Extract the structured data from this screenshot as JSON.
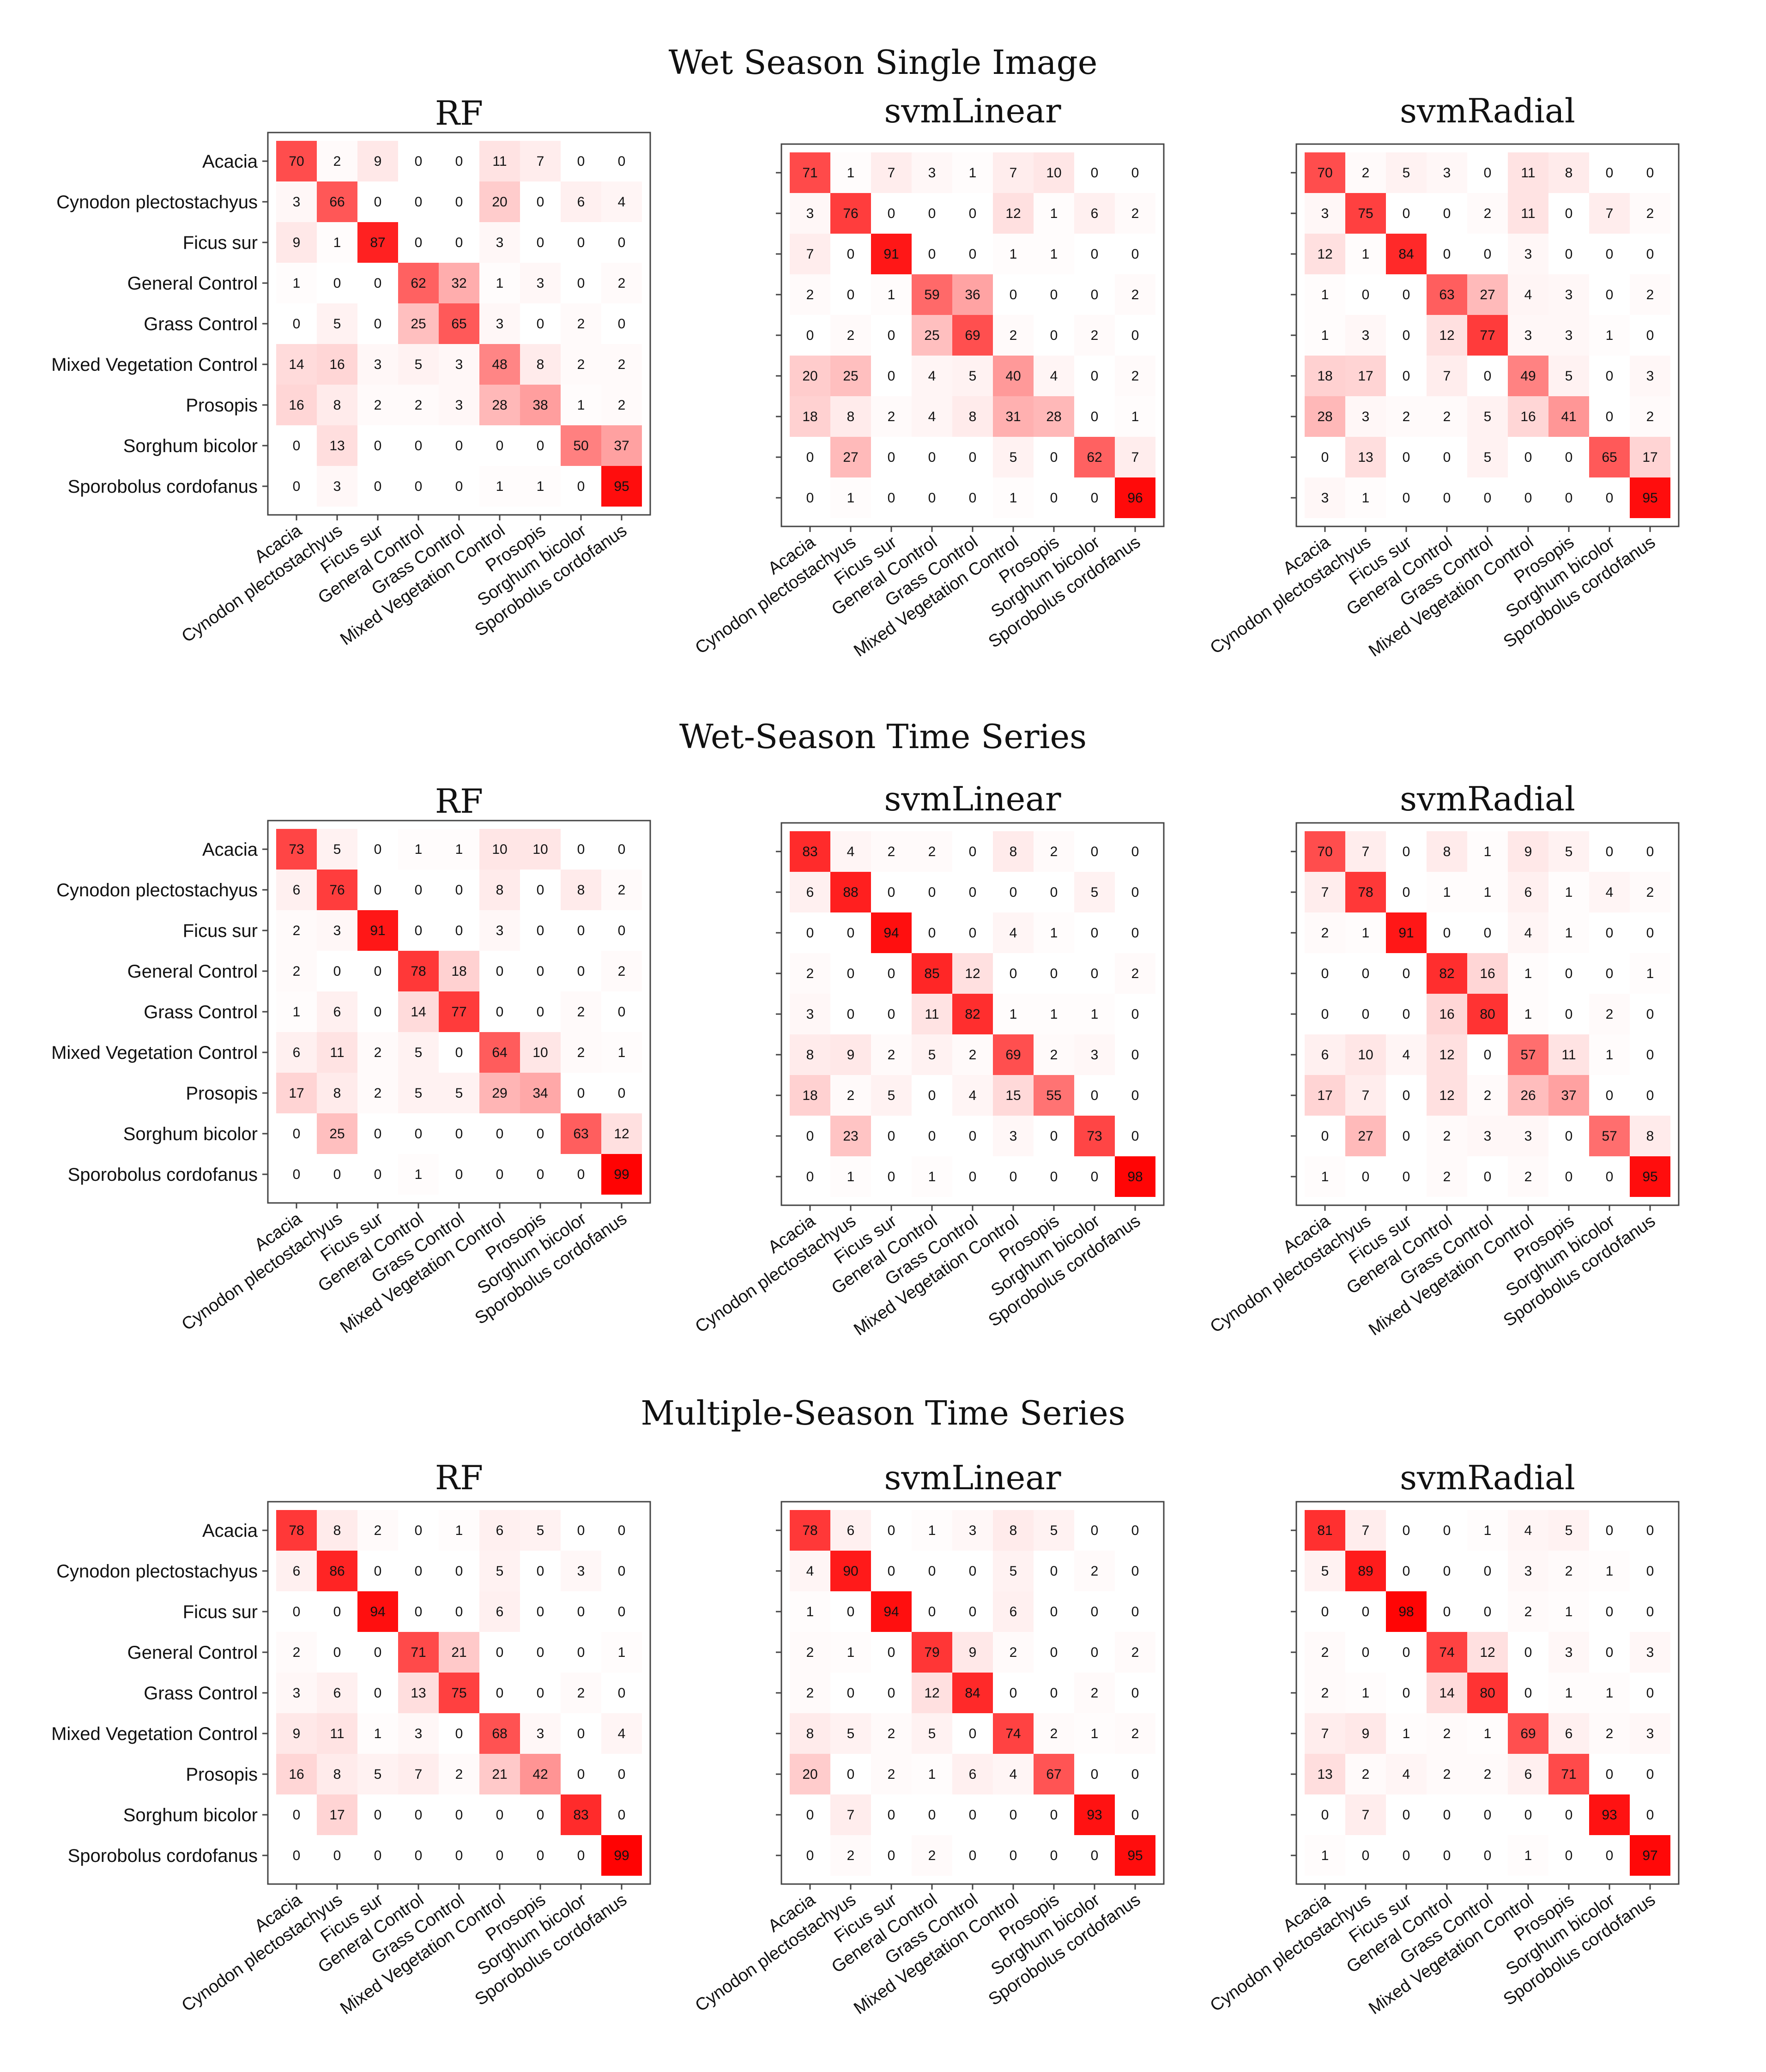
{
  "chart_data": {
    "type": "heatmap",
    "classes": [
      "Acacia",
      "Cynodon plectostachyus",
      "Ficus sur",
      "General Control",
      "Grass Control",
      "Mixed Vegetation Control",
      "Prosopis",
      "Sorghum bicolor",
      "Sporobolus cordofanus"
    ],
    "color_low": "#ffffff",
    "color_high": "#ff0000",
    "value_range": [
      0,
      100
    ],
    "rows": [
      {
        "title": "Wet Season Single Image",
        "panels": [
          {
            "title": "RF",
            "matrix": [
              [
                70,
                2,
                9,
                0,
                0,
                11,
                7,
                0,
                0
              ],
              [
                3,
                66,
                0,
                0,
                0,
                20,
                0,
                6,
                4
              ],
              [
                9,
                1,
                87,
                0,
                0,
                3,
                0,
                0,
                0
              ],
              [
                1,
                0,
                0,
                62,
                32,
                1,
                3,
                0,
                2
              ],
              [
                0,
                5,
                0,
                25,
                65,
                3,
                0,
                2,
                0
              ],
              [
                14,
                16,
                3,
                5,
                3,
                48,
                8,
                2,
                2
              ],
              [
                16,
                8,
                2,
                2,
                3,
                28,
                38,
                1,
                2
              ],
              [
                0,
                13,
                0,
                0,
                0,
                0,
                0,
                50,
                37
              ],
              [
                0,
                3,
                0,
                0,
                0,
                1,
                1,
                0,
                95
              ]
            ]
          },
          {
            "title": "svmLinear",
            "matrix": [
              [
                71,
                1,
                7,
                3,
                1,
                7,
                10,
                0,
                0
              ],
              [
                3,
                76,
                0,
                0,
                0,
                12,
                1,
                6,
                2
              ],
              [
                7,
                0,
                91,
                0,
                0,
                1,
                1,
                0,
                0
              ],
              [
                2,
                0,
                1,
                59,
                36,
                0,
                0,
                0,
                2
              ],
              [
                0,
                2,
                0,
                25,
                69,
                2,
                0,
                2,
                0
              ],
              [
                20,
                25,
                0,
                4,
                5,
                40,
                4,
                0,
                2
              ],
              [
                18,
                8,
                2,
                4,
                8,
                31,
                28,
                0,
                1
              ],
              [
                0,
                27,
                0,
                0,
                0,
                5,
                0,
                62,
                7
              ],
              [
                0,
                1,
                0,
                0,
                0,
                1,
                0,
                0,
                96
              ]
            ]
          },
          {
            "title": "svmRadial",
            "matrix": [
              [
                70,
                2,
                5,
                3,
                0,
                11,
                8,
                0,
                0
              ],
              [
                3,
                75,
                0,
                0,
                2,
                11,
                0,
                7,
                2
              ],
              [
                12,
                1,
                84,
                0,
                0,
                3,
                0,
                0,
                0
              ],
              [
                1,
                0,
                0,
                63,
                27,
                4,
                3,
                0,
                2
              ],
              [
                1,
                3,
                0,
                12,
                77,
                3,
                3,
                1,
                0
              ],
              [
                18,
                17,
                0,
                7,
                0,
                49,
                5,
                0,
                3
              ],
              [
                28,
                3,
                2,
                2,
                5,
                16,
                41,
                0,
                2
              ],
              [
                0,
                13,
                0,
                0,
                5,
                0,
                0,
                65,
                17
              ],
              [
                3,
                1,
                0,
                0,
                0,
                0,
                0,
                0,
                95
              ]
            ]
          }
        ]
      },
      {
        "title": "Wet-Season Time Series",
        "panels": [
          {
            "title": "RF",
            "matrix": [
              [
                73,
                5,
                0,
                1,
                1,
                10,
                10,
                0,
                0
              ],
              [
                6,
                76,
                0,
                0,
                0,
                8,
                0,
                8,
                2
              ],
              [
                2,
                3,
                91,
                0,
                0,
                3,
                0,
                0,
                0
              ],
              [
                2,
                0,
                0,
                78,
                18,
                0,
                0,
                0,
                2
              ],
              [
                1,
                6,
                0,
                14,
                77,
                0,
                0,
                2,
                0
              ],
              [
                6,
                11,
                2,
                5,
                0,
                64,
                10,
                2,
                1
              ],
              [
                17,
                8,
                2,
                5,
                5,
                29,
                34,
                0,
                0
              ],
              [
                0,
                25,
                0,
                0,
                0,
                0,
                0,
                63,
                12
              ],
              [
                0,
                0,
                0,
                1,
                0,
                0,
                0,
                0,
                99
              ]
            ]
          },
          {
            "title": "svmLinear",
            "matrix": [
              [
                83,
                4,
                2,
                2,
                0,
                8,
                2,
                0,
                0
              ],
              [
                6,
                88,
                0,
                0,
                0,
                0,
                0,
                5,
                0
              ],
              [
                0,
                0,
                94,
                0,
                0,
                4,
                1,
                0,
                0
              ],
              [
                2,
                0,
                0,
                85,
                12,
                0,
                0,
                0,
                2
              ],
              [
                3,
                0,
                0,
                11,
                82,
                1,
                1,
                1,
                0
              ],
              [
                8,
                9,
                2,
                5,
                2,
                69,
                2,
                3,
                0
              ],
              [
                18,
                2,
                5,
                0,
                4,
                15,
                55,
                0,
                0
              ],
              [
                0,
                23,
                0,
                0,
                0,
                3,
                0,
                73,
                0
              ],
              [
                0,
                1,
                0,
                1,
                0,
                0,
                0,
                0,
                98
              ]
            ]
          },
          {
            "title": "svmRadial",
            "matrix": [
              [
                70,
                7,
                0,
                8,
                1,
                9,
                5,
                0,
                0
              ],
              [
                7,
                78,
                0,
                1,
                1,
                6,
                1,
                4,
                2
              ],
              [
                2,
                1,
                91,
                0,
                0,
                4,
                1,
                0,
                0
              ],
              [
                0,
                0,
                0,
                82,
                16,
                1,
                0,
                0,
                1
              ],
              [
                0,
                0,
                0,
                16,
                80,
                1,
                0,
                2,
                0
              ],
              [
                6,
                10,
                4,
                12,
                0,
                57,
                11,
                1,
                0
              ],
              [
                17,
                7,
                0,
                12,
                2,
                26,
                37,
                0,
                0
              ],
              [
                0,
                27,
                0,
                2,
                3,
                3,
                0,
                57,
                8
              ],
              [
                1,
                0,
                0,
                2,
                0,
                2,
                0,
                0,
                95
              ]
            ]
          }
        ]
      },
      {
        "title": "Multiple-Season Time Series",
        "panels": [
          {
            "title": "RF",
            "matrix": [
              [
                78,
                8,
                2,
                0,
                1,
                6,
                5,
                0,
                0
              ],
              [
                6,
                86,
                0,
                0,
                0,
                5,
                0,
                3,
                0
              ],
              [
                0,
                0,
                94,
                0,
                0,
                6,
                0,
                0,
                0
              ],
              [
                2,
                0,
                0,
                71,
                21,
                0,
                0,
                0,
                1
              ],
              [
                3,
                6,
                0,
                13,
                75,
                0,
                0,
                2,
                0
              ],
              [
                9,
                11,
                1,
                3,
                0,
                68,
                3,
                0,
                4
              ],
              [
                16,
                8,
                5,
                7,
                2,
                21,
                42,
                0,
                0
              ],
              [
                0,
                17,
                0,
                0,
                0,
                0,
                0,
                83,
                0
              ],
              [
                0,
                0,
                0,
                0,
                0,
                0,
                0,
                0,
                99
              ]
            ]
          },
          {
            "title": "svmLinear",
            "matrix": [
              [
                78,
                6,
                0,
                1,
                3,
                8,
                5,
                0,
                0
              ],
              [
                4,
                90,
                0,
                0,
                0,
                5,
                0,
                2,
                0
              ],
              [
                1,
                0,
                94,
                0,
                0,
                6,
                0,
                0,
                0
              ],
              [
                2,
                1,
                0,
                79,
                9,
                2,
                0,
                0,
                2
              ],
              [
                2,
                0,
                0,
                12,
                84,
                0,
                0,
                2,
                0
              ],
              [
                8,
                5,
                2,
                5,
                0,
                74,
                2,
                1,
                2
              ],
              [
                20,
                0,
                2,
                1,
                6,
                4,
                67,
                0,
                0
              ],
              [
                0,
                7,
                0,
                0,
                0,
                0,
                0,
                93,
                0
              ],
              [
                0,
                2,
                0,
                2,
                0,
                0,
                0,
                0,
                95
              ]
            ]
          },
          {
            "title": "svmRadial",
            "matrix": [
              [
                81,
                7,
                0,
                0,
                1,
                4,
                5,
                0,
                0
              ],
              [
                5,
                89,
                0,
                0,
                0,
                3,
                2,
                1,
                0
              ],
              [
                0,
                0,
                98,
                0,
                0,
                2,
                1,
                0,
                0
              ],
              [
                2,
                0,
                0,
                74,
                12,
                0,
                3,
                0,
                3
              ],
              [
                2,
                1,
                0,
                14,
                80,
                0,
                1,
                1,
                0
              ],
              [
                7,
                9,
                1,
                2,
                1,
                69,
                6,
                2,
                3
              ],
              [
                13,
                2,
                4,
                2,
                2,
                6,
                71,
                0,
                0
              ],
              [
                0,
                7,
                0,
                0,
                0,
                0,
                0,
                93,
                0
              ],
              [
                1,
                0,
                0,
                0,
                0,
                1,
                0,
                0,
                97
              ]
            ]
          }
        ]
      }
    ]
  }
}
